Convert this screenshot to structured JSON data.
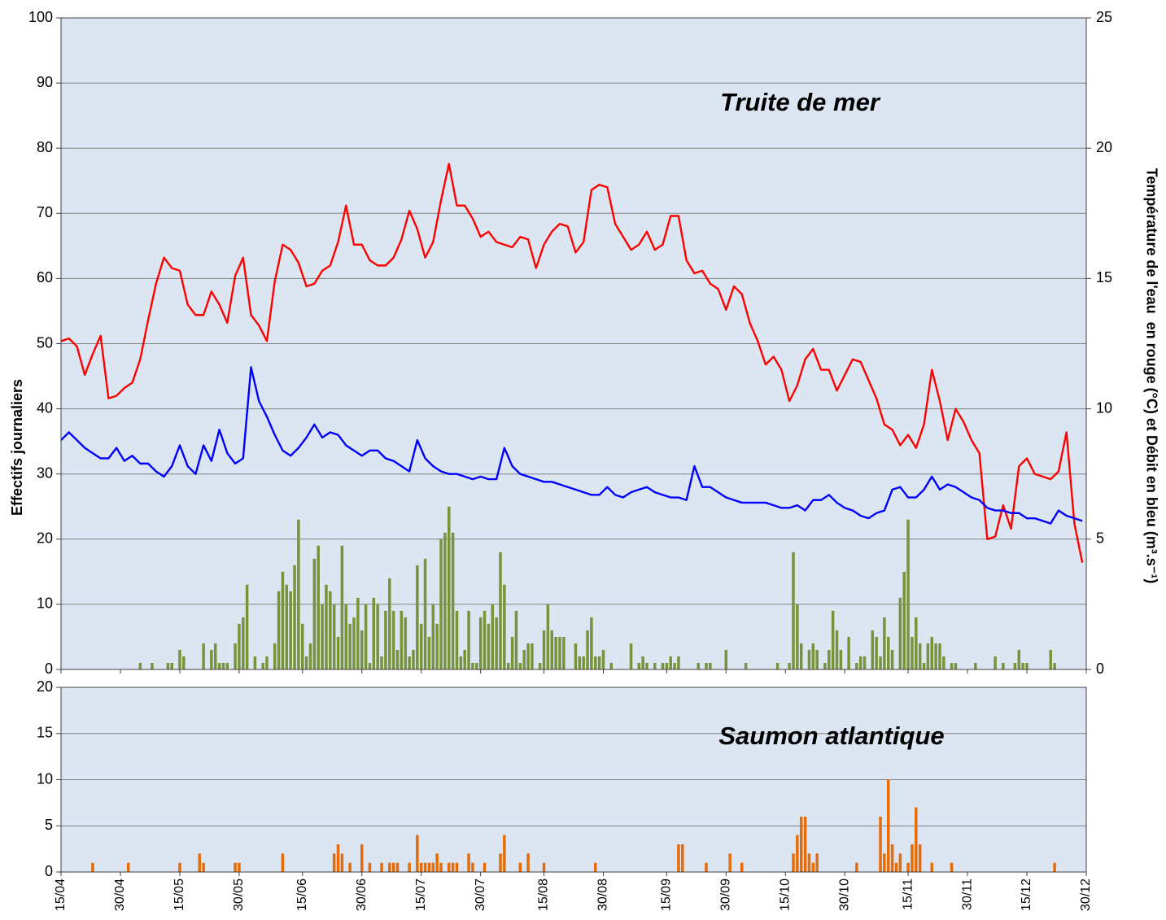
{
  "chart_data": [
    {
      "type": "combo",
      "annotation": "Truite de mer",
      "annotation_color": "#77933c",
      "ylabel": "Effectifs journaliers",
      "y2label": "Température de l'eau  en rouge (°C) et Débit en bleu (m³.s⁻¹)",
      "xlim": [
        0,
        259
      ],
      "ylim": [
        0,
        100
      ],
      "yticks": [
        0,
        10,
        20,
        30,
        40,
        50,
        60,
        70,
        80,
        90,
        100
      ],
      "y2lim": [
        0,
        25
      ],
      "y2ticks": [
        0,
        5,
        10,
        15,
        20,
        25
      ],
      "grid": true,
      "background": "#dce6f2",
      "series": [
        {
          "type": "bar",
          "color": "#77933c",
          "x": [
            20,
            23,
            27,
            28,
            30,
            31,
            36,
            38,
            39,
            40,
            41,
            42,
            44,
            45,
            46,
            47,
            49,
            51,
            52,
            54,
            55,
            56,
            57,
            58,
            59,
            60,
            61,
            62,
            63,
            64,
            65,
            66,
            67,
            68,
            69,
            70,
            71,
            72,
            73,
            74,
            75,
            76,
            77,
            78,
            79,
            80,
            81,
            82,
            83,
            84,
            85,
            86,
            87,
            88,
            89,
            90,
            91,
            92,
            93,
            94,
            95,
            96,
            97,
            98,
            99,
            100,
            101,
            102,
            103,
            104,
            105,
            106,
            107,
            108,
            109,
            110,
            111,
            112,
            113,
            114,
            115,
            116,
            117,
            118,
            119,
            121,
            122,
            123,
            124,
            125,
            126,
            127,
            130,
            131,
            132,
            133,
            134,
            135,
            136,
            137,
            139,
            144,
            146,
            147,
            148,
            150,
            152,
            153,
            154,
            155,
            156,
            161,
            163,
            164,
            168,
            173,
            181,
            184,
            185,
            186,
            187,
            189,
            190,
            191,
            193,
            194,
            195,
            196,
            197,
            199,
            201,
            202,
            203,
            205,
            206,
            207,
            208,
            209,
            210,
            212,
            213,
            214,
            215,
            216,
            217,
            218,
            219,
            220,
            221,
            222,
            223,
            225,
            226,
            231,
            236,
            238,
            241,
            242,
            243,
            244,
            250,
            251
          ],
          "values": [
            1,
            1,
            1,
            1,
            3,
            2,
            4,
            3,
            4,
            1,
            1,
            1,
            4,
            7,
            8,
            13,
            2,
            1,
            2,
            4,
            12,
            15,
            13,
            12,
            16,
            23,
            7,
            2,
            4,
            17,
            19,
            10,
            13,
            12,
            10,
            5,
            19,
            10,
            7,
            8,
            11,
            6,
            10,
            1,
            11,
            10,
            2,
            9,
            14,
            9,
            3,
            9,
            8,
            2,
            3,
            16,
            7,
            17,
            5,
            10,
            7,
            20,
            21,
            25,
            21,
            9,
            2,
            3,
            9,
            1,
            1,
            8,
            9,
            7,
            10,
            8,
            18,
            13,
            1,
            5,
            9,
            1,
            3,
            4,
            4,
            1,
            6,
            10,
            6,
            5,
            5,
            5,
            4,
            2,
            2,
            6,
            8,
            2,
            2,
            3,
            1,
            4,
            1,
            2,
            1,
            1,
            1,
            1,
            2,
            1,
            2,
            1,
            1,
            1,
            3,
            1,
            1,
            1,
            18,
            10,
            4,
            3,
            4,
            3,
            1,
            3,
            9,
            6,
            3,
            5,
            1,
            2,
            2,
            6,
            5,
            2,
            8,
            5,
            3,
            11,
            15,
            23,
            5,
            8,
            4,
            1,
            4,
            5,
            4,
            4,
            2,
            1,
            1,
            1,
            2,
            1,
            1,
            3,
            1,
            1,
            3,
            1
          ]
        },
        {
          "type": "line",
          "axis": "y2",
          "color": "#ff0000",
          "x": [
            0,
            2,
            4,
            6,
            8,
            10,
            12,
            14,
            16,
            18,
            20,
            22,
            24,
            26,
            28,
            30,
            32,
            34,
            36,
            38,
            40,
            42,
            44,
            46,
            48,
            50,
            52,
            54,
            56,
            58,
            60,
            62,
            64,
            66,
            68,
            70,
            72,
            74,
            76,
            78,
            80,
            82,
            84,
            86,
            88,
            90,
            92,
            94,
            96,
            98,
            100,
            102,
            104,
            106,
            108,
            110,
            112,
            114,
            116,
            118,
            120,
            122,
            124,
            126,
            128,
            130,
            132,
            134,
            136,
            138,
            140,
            142,
            144,
            146,
            148,
            150,
            152,
            154,
            156,
            158,
            160,
            162,
            164,
            166,
            168,
            170,
            172,
            174,
            176,
            178,
            180,
            182,
            184,
            186,
            188,
            190,
            192,
            194,
            196,
            198,
            200,
            202,
            204,
            206,
            208,
            210,
            212,
            214,
            216,
            218,
            220,
            222,
            224,
            226,
            228,
            230,
            232,
            234,
            236,
            238,
            240,
            242,
            244,
            246,
            248,
            250,
            252,
            254,
            256,
            258
          ],
          "values": [
            12.6,
            12.7,
            12.4,
            11.3,
            12.1,
            12.8,
            10.4,
            10.5,
            10.8,
            11.0,
            11.9,
            13.4,
            14.8,
            15.8,
            15.4,
            15.3,
            14.0,
            13.6,
            13.6,
            14.5,
            14.0,
            13.3,
            15.1,
            15.8,
            13.6,
            13.2,
            12.6,
            14.9,
            16.3,
            16.1,
            15.6,
            14.7,
            14.8,
            15.3,
            15.5,
            16.4,
            17.8,
            16.3,
            16.3,
            15.7,
            15.5,
            15.5,
            15.8,
            16.5,
            17.6,
            16.9,
            15.8,
            16.4,
            18.0,
            19.4,
            17.8,
            17.8,
            17.3,
            16.6,
            16.8,
            16.4,
            16.3,
            16.2,
            16.6,
            16.5,
            15.4,
            16.3,
            16.8,
            17.1,
            17.0,
            16.0,
            16.4,
            18.4,
            18.6,
            18.5,
            17.1,
            16.6,
            16.1,
            16.3,
            16.8,
            16.1,
            16.3,
            17.4,
            17.4,
            15.7,
            15.2,
            15.3,
            14.8,
            14.6,
            13.8,
            14.7,
            14.4,
            13.3,
            12.6,
            11.7,
            12.0,
            11.5,
            10.3,
            10.9,
            11.9,
            12.3,
            11.5,
            11.5,
            10.7,
            11.3,
            11.9,
            11.8,
            11.1,
            10.4,
            9.4,
            9.2,
            8.6,
            9.0,
            8.5,
            9.4,
            11.5,
            10.3,
            8.8,
            10.0,
            9.5,
            8.8,
            8.3,
            5.0,
            5.1,
            6.3,
            5.4,
            7.8,
            8.1,
            7.5,
            7.4,
            7.3,
            7.6,
            9.1,
            5.6,
            4.1
          ]
        },
        {
          "type": "line",
          "axis": "y2",
          "color": "#0000ff",
          "x": [
            0,
            2,
            4,
            6,
            8,
            10,
            12,
            14,
            16,
            18,
            20,
            22,
            24,
            26,
            28,
            30,
            32,
            34,
            36,
            38,
            40,
            42,
            44,
            46,
            48,
            50,
            52,
            54,
            56,
            58,
            60,
            62,
            64,
            66,
            68,
            70,
            72,
            74,
            76,
            78,
            80,
            82,
            84,
            86,
            88,
            90,
            92,
            94,
            96,
            98,
            100,
            102,
            104,
            106,
            108,
            110,
            112,
            114,
            116,
            118,
            120,
            122,
            124,
            126,
            128,
            130,
            132,
            134,
            136,
            138,
            140,
            142,
            144,
            146,
            148,
            150,
            152,
            154,
            156,
            158,
            160,
            162,
            164,
            166,
            168,
            170,
            172,
            174,
            176,
            178,
            180,
            182,
            184,
            186,
            188,
            190,
            192,
            194,
            196,
            198,
            200,
            202,
            204,
            206,
            208,
            210,
            212,
            214,
            216,
            218,
            220,
            222,
            224,
            226,
            228,
            230,
            232,
            234,
            236,
            238,
            240,
            242,
            244,
            246,
            248,
            250,
            252,
            254,
            256,
            258
          ],
          "values": [
            8.8,
            9.1,
            8.8,
            8.5,
            8.3,
            8.1,
            8.1,
            8.5,
            8.0,
            8.2,
            7.9,
            7.9,
            7.6,
            7.4,
            7.8,
            8.6,
            7.8,
            7.5,
            8.6,
            8.0,
            9.2,
            8.3,
            7.9,
            8.1,
            11.6,
            10.3,
            9.7,
            9.0,
            8.4,
            8.2,
            8.5,
            8.9,
            9.4,
            8.9,
            9.1,
            9.0,
            8.6,
            8.4,
            8.2,
            8.4,
            8.4,
            8.1,
            8.0,
            7.8,
            7.6,
            8.8,
            8.1,
            7.8,
            7.6,
            7.5,
            7.5,
            7.4,
            7.3,
            7.4,
            7.3,
            7.3,
            8.5,
            7.8,
            7.5,
            7.4,
            7.3,
            7.2,
            7.2,
            7.1,
            7.0,
            6.9,
            6.8,
            6.7,
            6.7,
            7.0,
            6.7,
            6.6,
            6.8,
            6.9,
            7.0,
            6.8,
            6.7,
            6.6,
            6.6,
            6.5,
            7.8,
            7.0,
            7.0,
            6.8,
            6.6,
            6.5,
            6.4,
            6.4,
            6.4,
            6.4,
            6.3,
            6.2,
            6.2,
            6.3,
            6.1,
            6.5,
            6.5,
            6.7,
            6.4,
            6.2,
            6.1,
            5.9,
            5.8,
            6.0,
            6.1,
            6.9,
            7.0,
            6.6,
            6.6,
            6.9,
            7.4,
            6.9,
            7.1,
            7.0,
            6.8,
            6.6,
            6.5,
            6.2,
            6.1,
            6.1,
            6.0,
            6.0,
            5.8,
            5.8,
            5.7,
            5.6,
            6.1,
            5.9,
            5.8,
            5.7
          ]
        }
      ]
    },
    {
      "type": "bar",
      "annotation": "Saumon atlantique",
      "annotation_color": "#e46c0a",
      "xlim": [
        0,
        259
      ],
      "ylim": [
        0,
        20
      ],
      "yticks": [
        0,
        5,
        10,
        15,
        20
      ],
      "grid": true,
      "background": "#dce6f2",
      "xticks": [
        {
          "value": 0,
          "label": "15/04"
        },
        {
          "value": 15,
          "label": "30/04"
        },
        {
          "value": 30,
          "label": "15/05"
        },
        {
          "value": 45,
          "label": "30/05"
        },
        {
          "value": 61,
          "label": "15/06"
        },
        {
          "value": 76,
          "label": "30/06"
        },
        {
          "value": 91,
          "label": "15/07"
        },
        {
          "value": 106,
          "label": "30/07"
        },
        {
          "value": 122,
          "label": "15/08"
        },
        {
          "value": 137,
          "label": "30/08"
        },
        {
          "value": 153,
          "label": "15/09"
        },
        {
          "value": 168,
          "label": "30/09"
        },
        {
          "value": 183,
          "label": "15/10"
        },
        {
          "value": 198,
          "label": "30/10"
        },
        {
          "value": 214,
          "label": "15/11"
        },
        {
          "value": 229,
          "label": "30/11"
        },
        {
          "value": 244,
          "label": "15/12"
        },
        {
          "value": 259,
          "label": "30/12"
        }
      ],
      "series": [
        {
          "type": "bar",
          "color": "#e46c0a",
          "x": [
            8,
            17,
            30,
            35,
            36,
            44,
            45,
            56,
            69,
            70,
            71,
            73,
            76,
            78,
            81,
            83,
            84,
            85,
            88,
            90,
            91,
            92,
            93,
            94,
            95,
            96,
            98,
            99,
            100,
            103,
            104,
            107,
            111,
            112,
            116,
            118,
            122,
            135,
            156,
            157,
            163,
            169,
            172,
            185,
            186,
            187,
            188,
            189,
            190,
            191,
            201,
            207,
            208,
            209,
            210,
            211,
            212,
            214,
            215,
            216,
            217,
            220,
            225,
            251
          ],
          "values": [
            1,
            1,
            1,
            2,
            1,
            1,
            1,
            2,
            2,
            3,
            2,
            1,
            3,
            1,
            1,
            1,
            1,
            1,
            1,
            4,
            1,
            1,
            1,
            1,
            2,
            1,
            1,
            1,
            1,
            2,
            1,
            1,
            2,
            4,
            1,
            2,
            1,
            1,
            3,
            3,
            1,
            2,
            1,
            2,
            4,
            6,
            6,
            2,
            1,
            2,
            1,
            6,
            2,
            10,
            3,
            1,
            2,
            1,
            3,
            7,
            3,
            1,
            1,
            1
          ]
        }
      ]
    }
  ]
}
